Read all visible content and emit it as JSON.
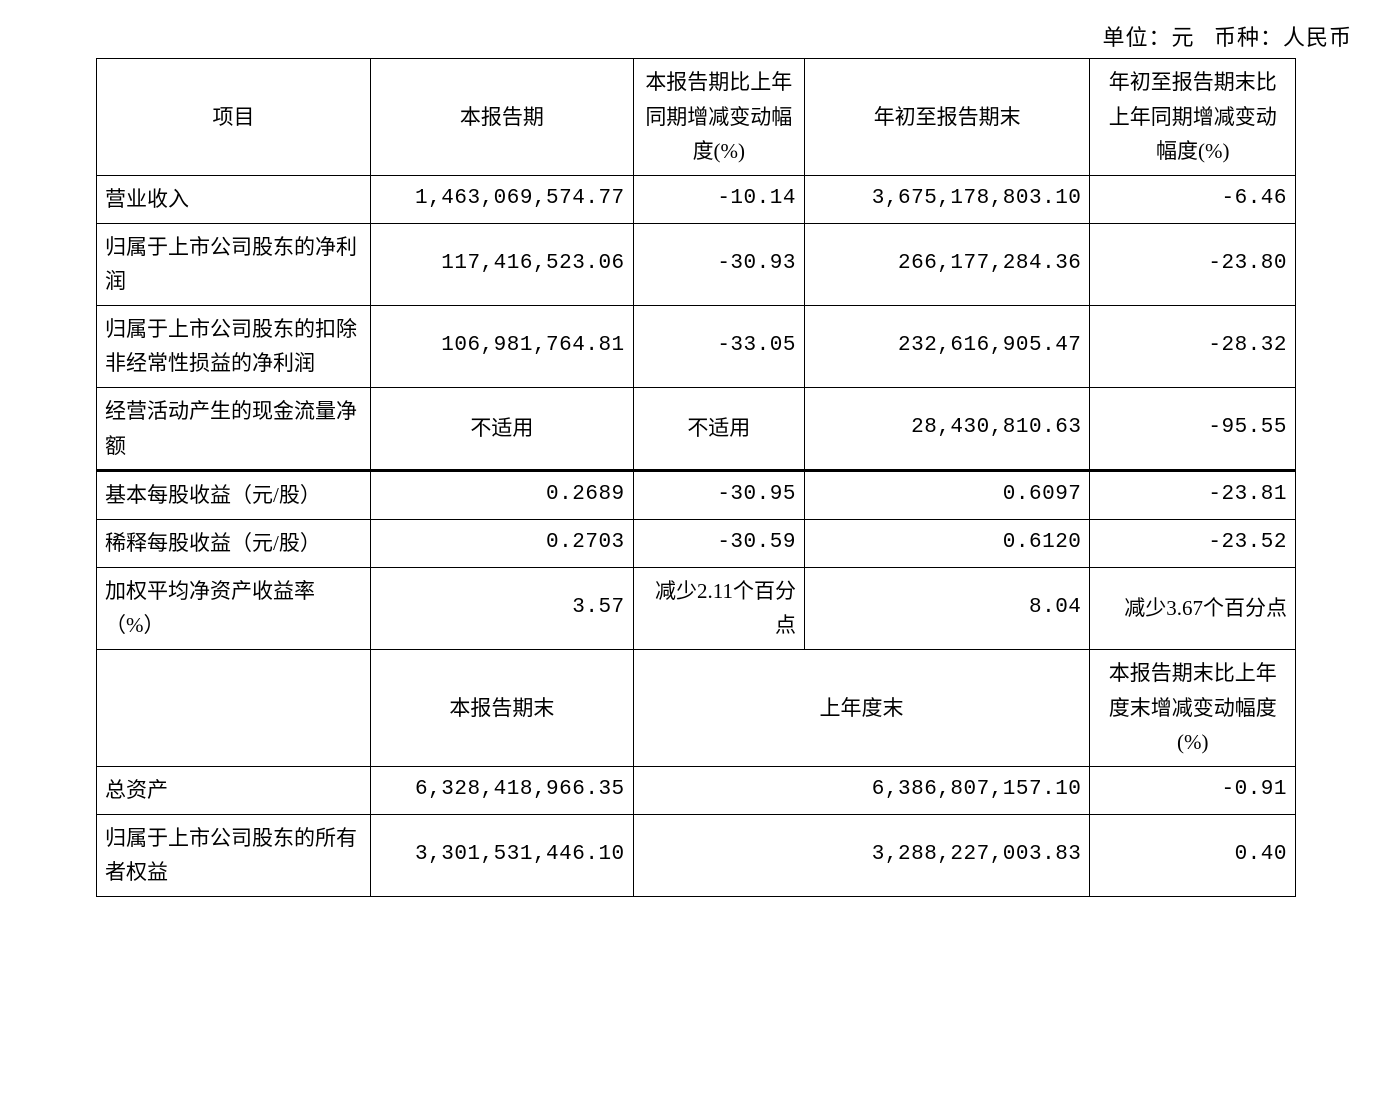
{
  "table": {
    "caption_unit": "单位：元",
    "caption_currency": "币种：人民币",
    "border_color": "#000000",
    "background_color": "#ffffff",
    "text_color": "#000000",
    "font_family": "SimSun",
    "font_size_pt": 16,
    "columns": {
      "item": "项目",
      "current_period": "本报告期",
      "yoy_change": "本报告期比上年同期增减变动幅度(%)",
      "ytd": "年初至报告期末",
      "ytd_yoy_change": "年初至报告期末比上年同期增减变动幅度(%)"
    },
    "rows_section1": [
      {
        "item": "营业收入",
        "current": "1,463,069,574.77",
        "yoy": "-10.14",
        "ytd": "3,675,178,803.10",
        "ytd_yoy": "-6.46"
      },
      {
        "item": "归属于上市公司股东的净利润",
        "current": "117,416,523.06",
        "yoy": "-30.93",
        "ytd": "266,177,284.36",
        "ytd_yoy": "-23.80"
      },
      {
        "item": "归属于上市公司股东的扣除非经常性损益的净利润",
        "current": "106,981,764.81",
        "yoy": "-33.05",
        "ytd": "232,616,905.47",
        "ytd_yoy": "-28.32"
      },
      {
        "item": "经营活动产生的现金流量净额",
        "current": "不适用",
        "yoy": "不适用",
        "ytd": "28,430,810.63",
        "ytd_yoy": "-95.55"
      }
    ],
    "rows_section2": [
      {
        "item": "基本每股收益（元/股）",
        "current": "0.2689",
        "yoy": "-30.95",
        "ytd": "0.6097",
        "ytd_yoy": "-23.81"
      },
      {
        "item": "稀释每股收益（元/股）",
        "current": "0.2703",
        "yoy": "-30.59",
        "ytd": "0.6120",
        "ytd_yoy": "-23.52"
      },
      {
        "item": "加权平均净资产收益率（%）",
        "current": "3.57",
        "yoy": "减少2.11个百分点",
        "ytd": "8.04",
        "ytd_yoy": "减少3.67个百分点"
      }
    ],
    "subheader": {
      "period_end": "本报告期末",
      "prev_year_end": "上年度末",
      "change": "本报告期末比上年度末增减变动幅度(%)"
    },
    "rows_section3": [
      {
        "item": "总资产",
        "period_end": "6,328,418,966.35",
        "prev_year_end": "6,386,807,157.10",
        "change": "-0.91"
      },
      {
        "item": "归属于上市公司股东的所有者权益",
        "period_end": "3,301,531,446.10",
        "prev_year_end": "3,288,227,003.83",
        "change": "0.40"
      }
    ]
  }
}
